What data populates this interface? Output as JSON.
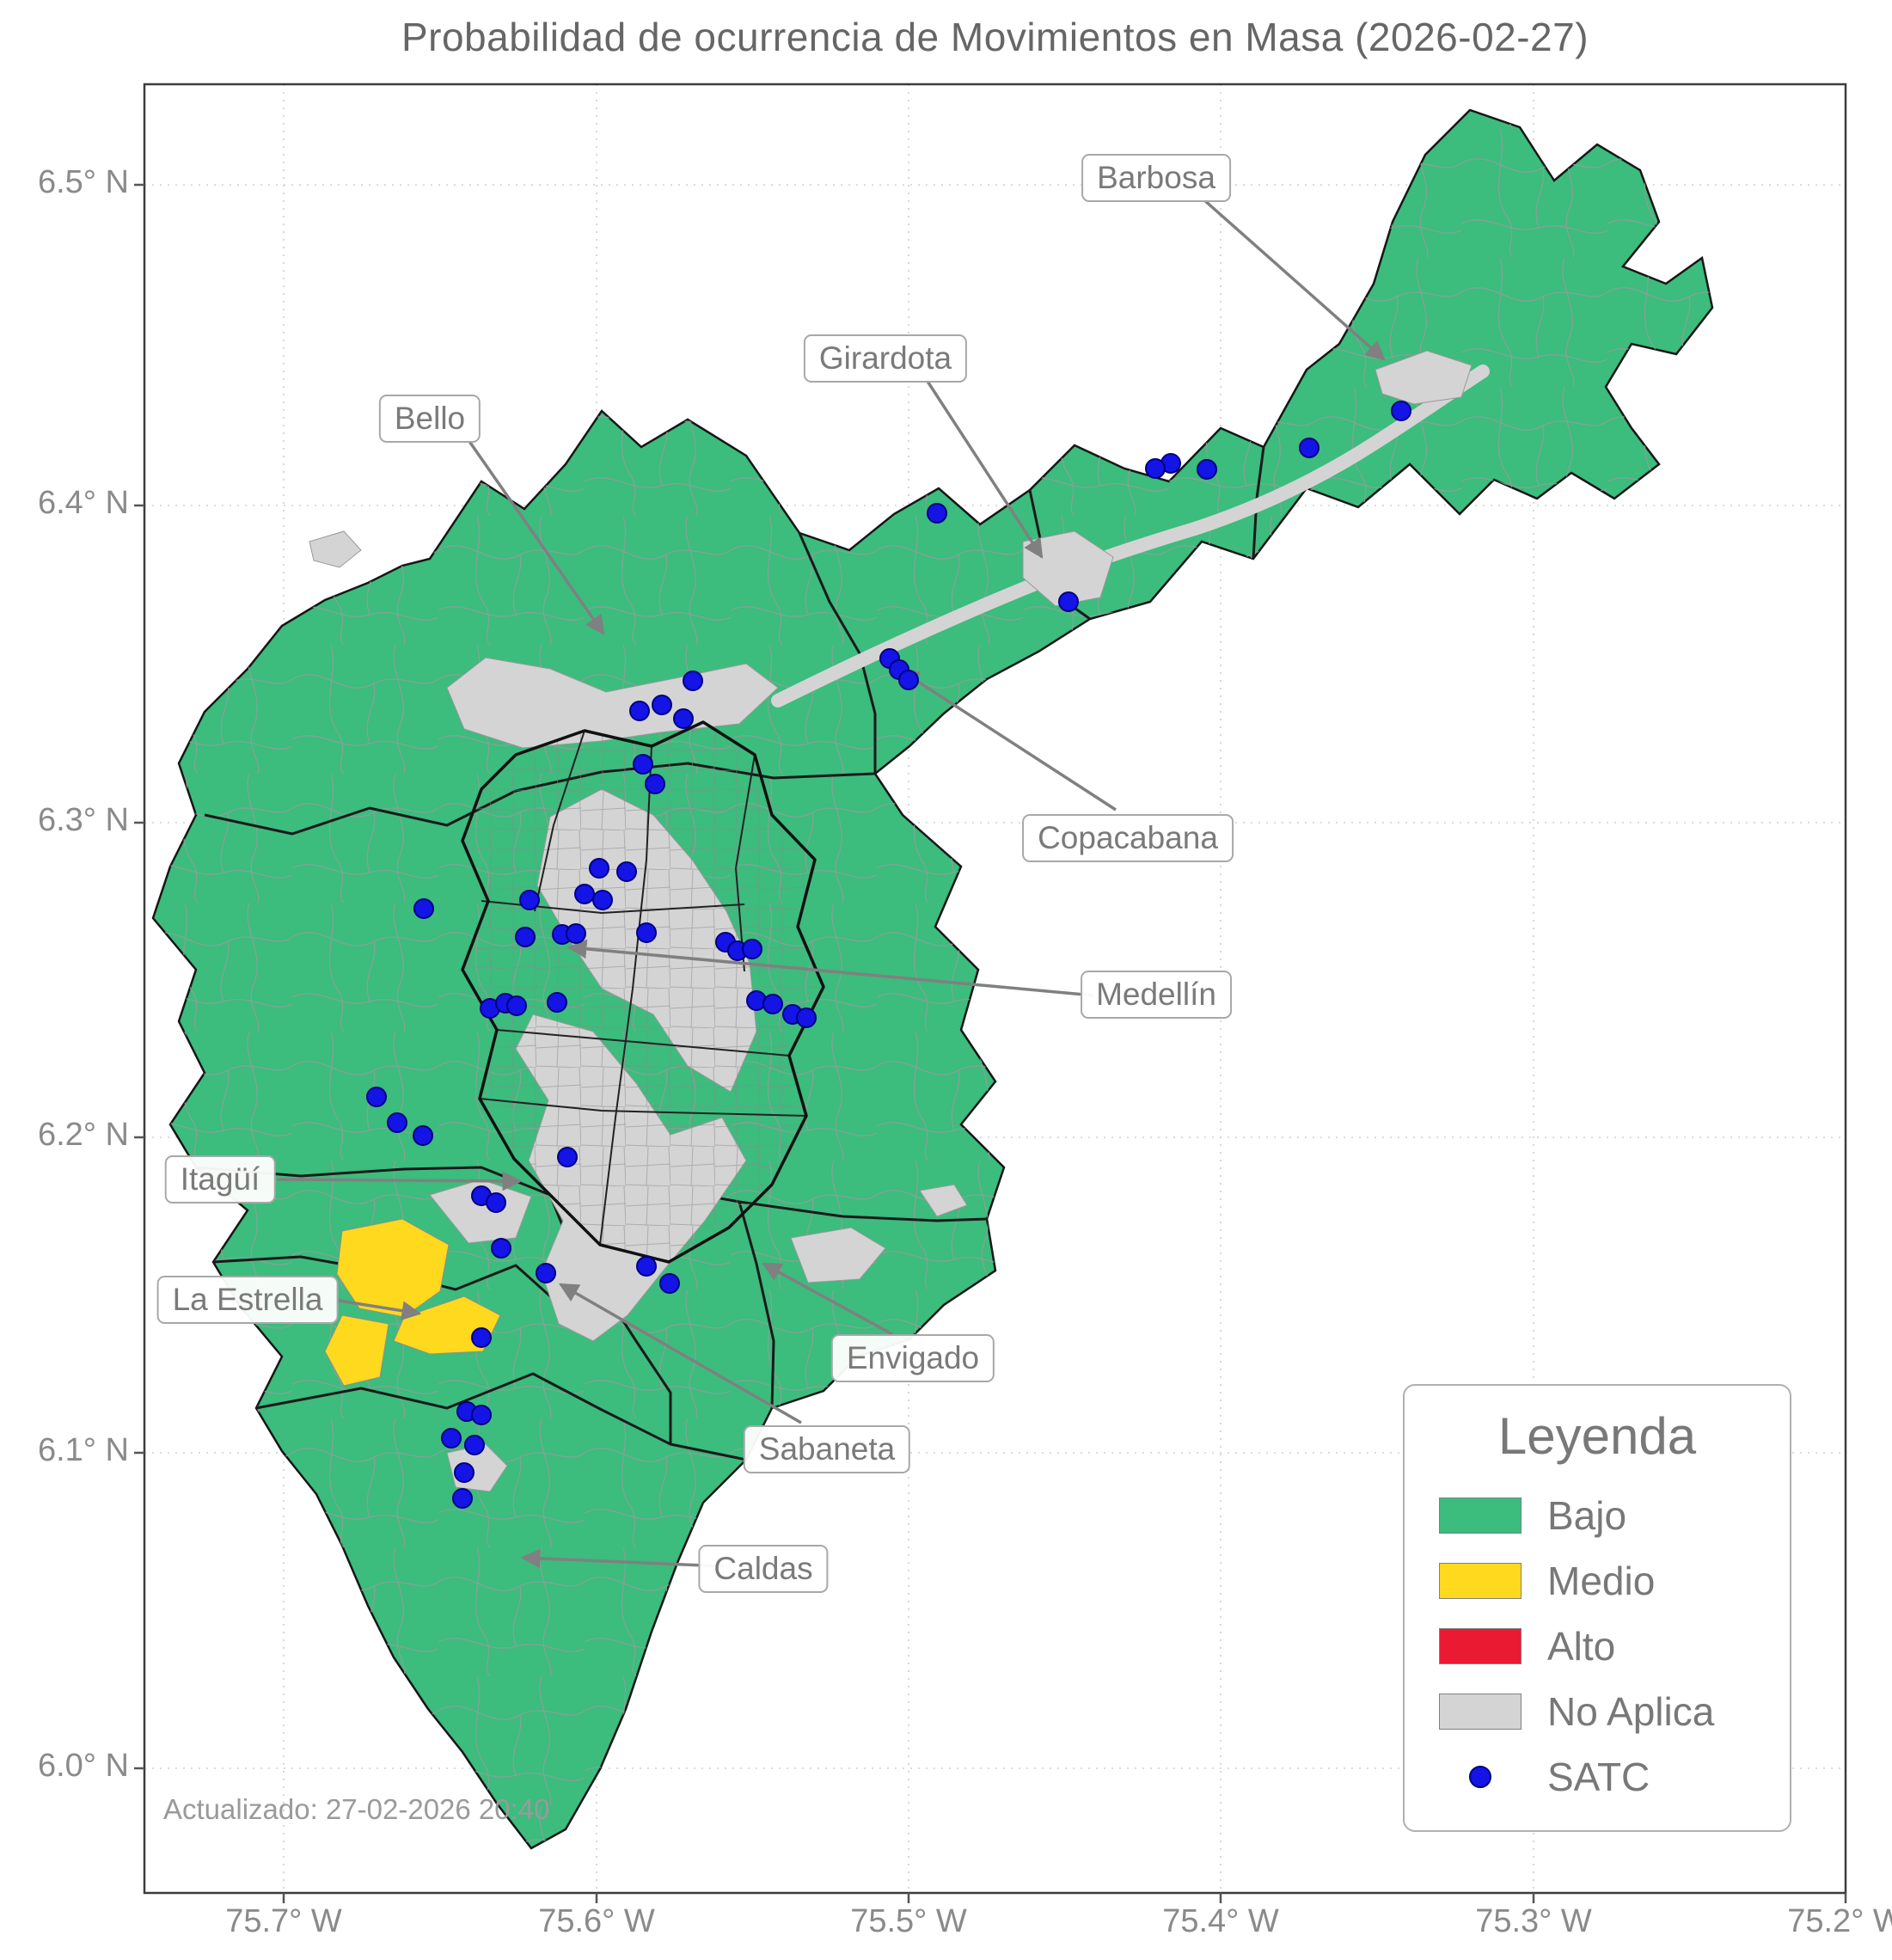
{
  "title": "Probabilidad de ocurrencia de Movimientos en Masa (2026-02-27)",
  "updated_text": "Actualizado: 27-02-2026 20:40",
  "axes": {
    "lat_ticks": [
      "6.5° N",
      "6.4° N",
      "6.3° N",
      "6.2° N",
      "6.1° N",
      "6.0° N"
    ],
    "lon_ticks": [
      "75.7° W",
      "75.6° W",
      "75.5° W",
      "75.4° W",
      "75.3° W",
      "75.2° W"
    ]
  },
  "legend": {
    "title": "Leyenda",
    "items": [
      {
        "key": "bajo",
        "label": "Bajo",
        "color": "#3cbc7d",
        "type": "patch"
      },
      {
        "key": "medio",
        "label": "Medio",
        "color": "#ffd91e",
        "type": "patch"
      },
      {
        "key": "alto",
        "label": "Alto",
        "color": "#ea1a33",
        "type": "patch"
      },
      {
        "key": "no_aplica",
        "label": "No Aplica",
        "color": "#d4d4d4",
        "type": "patch"
      },
      {
        "key": "satc",
        "label": "SATC",
        "color": "#1414e6",
        "type": "point"
      }
    ]
  },
  "annotations": {
    "barbosa": "Barbosa",
    "girardota": "Girardota",
    "bello": "Bello",
    "copacabana": "Copacabana",
    "medellin": "Medellín",
    "itagui": "Itagüí",
    "la_estrella": "La Estrella",
    "envigado": "Envigado",
    "sabaneta": "Sabaneta",
    "caldas": "Caldas"
  },
  "satc_points": [
    [
      1630,
      478
    ],
    [
      1523,
      521
    ],
    [
      1404,
      546
    ],
    [
      1362,
      539
    ],
    [
      1344,
      545
    ],
    [
      1090,
      597
    ],
    [
      1243,
      700
    ],
    [
      1035,
      766
    ],
    [
      1046,
      779
    ],
    [
      1057,
      791
    ],
    [
      806,
      792
    ],
    [
      770,
      820
    ],
    [
      744,
      827
    ],
    [
      795,
      836
    ],
    [
      748,
      889
    ],
    [
      762,
      912
    ],
    [
      697,
      1010
    ],
    [
      729,
      1014
    ],
    [
      701,
      1047
    ],
    [
      493,
      1057
    ],
    [
      616,
      1047
    ],
    [
      680,
      1040
    ],
    [
      611,
      1090
    ],
    [
      654,
      1087
    ],
    [
      670,
      1086
    ],
    [
      752,
      1085
    ],
    [
      844,
      1096
    ],
    [
      858,
      1106
    ],
    [
      875,
      1104
    ],
    [
      570,
      1173
    ],
    [
      588,
      1167
    ],
    [
      601,
      1170
    ],
    [
      648,
      1166
    ],
    [
      880,
      1164
    ],
    [
      899,
      1168
    ],
    [
      922,
      1180
    ],
    [
      938,
      1184
    ],
    [
      438,
      1276
    ],
    [
      462,
      1306
    ],
    [
      492,
      1321
    ],
    [
      660,
      1346
    ],
    [
      560,
      1391
    ],
    [
      577,
      1399
    ],
    [
      583,
      1452
    ],
    [
      635,
      1481
    ],
    [
      752,
      1473
    ],
    [
      779,
      1493
    ],
    [
      560,
      1556
    ],
    [
      543,
      1642
    ],
    [
      560,
      1646
    ],
    [
      525,
      1673
    ],
    [
      552,
      1681
    ],
    [
      540,
      1713
    ],
    [
      538,
      1743
    ]
  ]
}
